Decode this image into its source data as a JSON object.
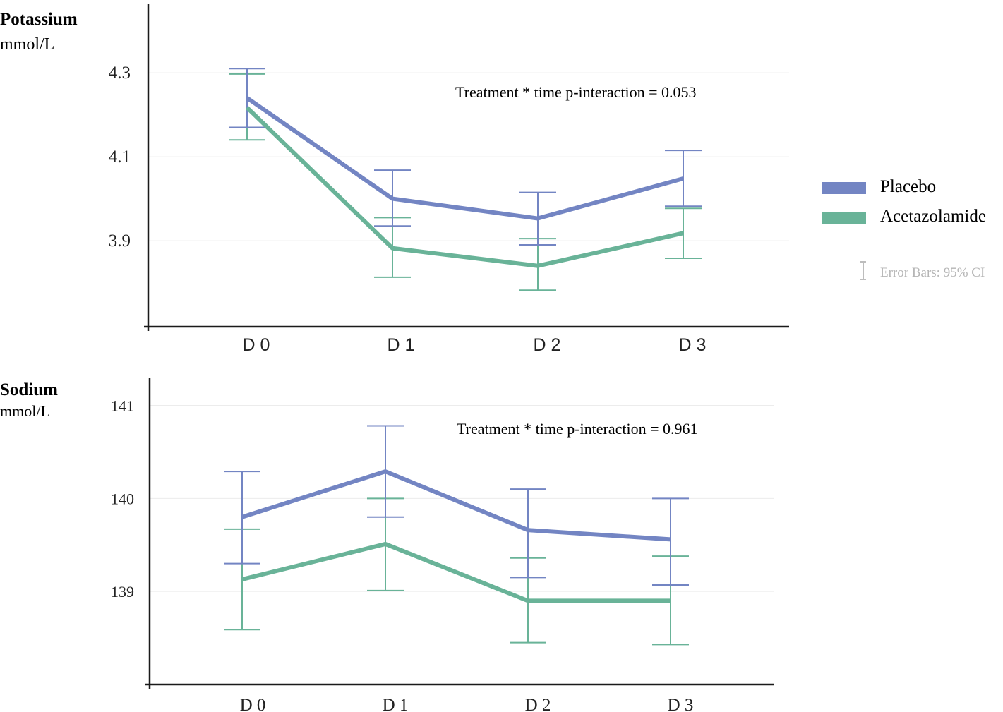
{
  "colors": {
    "placebo": "#7385C3",
    "acetazolamide": "#69B398",
    "axis": "#1a1a1a",
    "grid": "#ececec",
    "errorbar_legend": "#bdbdbd"
  },
  "legend": {
    "items": [
      {
        "label": "Placebo",
        "color": "#7385C3"
      },
      {
        "label": "Acetazolamide",
        "color": "#69B398"
      }
    ],
    "error_bars_label": "Error Bars: 95% CI"
  },
  "chart_data": [
    {
      "type": "line",
      "title": "Potassium",
      "ylabel": "mmol/L",
      "annotation": "Treatment * time p-interaction = 0.053",
      "categories": [
        "D 0",
        "D 1",
        "D 2",
        "D 3"
      ],
      "yticks": [
        "4.3",
        "4.1",
        "3.9"
      ],
      "ytick_values": [
        4.3,
        4.1,
        3.9
      ],
      "ylim": [
        3.695,
        4.465
      ],
      "grid": true,
      "series": [
        {
          "name": "Placebo",
          "values": [
            4.24,
            4.0,
            3.953,
            4.048
          ],
          "ci_low": [
            4.17,
            3.935,
            3.89,
            3.982
          ],
          "ci_high": [
            4.31,
            4.068,
            4.015,
            4.115
          ]
        },
        {
          "name": "Acetazolamide",
          "values": [
            4.217,
            3.882,
            3.84,
            3.918
          ],
          "ci_low": [
            4.14,
            3.813,
            3.782,
            3.858
          ],
          "ci_high": [
            4.297,
            3.955,
            3.905,
            3.977
          ]
        }
      ]
    },
    {
      "type": "line",
      "title": "Sodium",
      "ylabel": "mmol/L",
      "annotation": "Treatment * time p-interaction = 0.961",
      "categories": [
        "D 0",
        "D 1",
        "D 2",
        "D 3"
      ],
      "yticks": [
        "141",
        "140",
        "139"
      ],
      "ytick_values": [
        141,
        140,
        139
      ],
      "ylim": [
        138,
        141.3
      ],
      "grid": true,
      "series": [
        {
          "name": "Placebo",
          "values": [
            139.8,
            140.29,
            139.66,
            139.56
          ],
          "ci_low": [
            139.3,
            139.8,
            139.15,
            139.07
          ],
          "ci_high": [
            140.29,
            140.78,
            140.1,
            140.0
          ]
        },
        {
          "name": "Acetazolamide",
          "values": [
            139.13,
            139.51,
            138.9,
            138.9
          ],
          "ci_low": [
            138.59,
            139.01,
            138.45,
            138.43
          ],
          "ci_high": [
            139.67,
            140.0,
            139.36,
            139.38
          ]
        }
      ]
    }
  ]
}
